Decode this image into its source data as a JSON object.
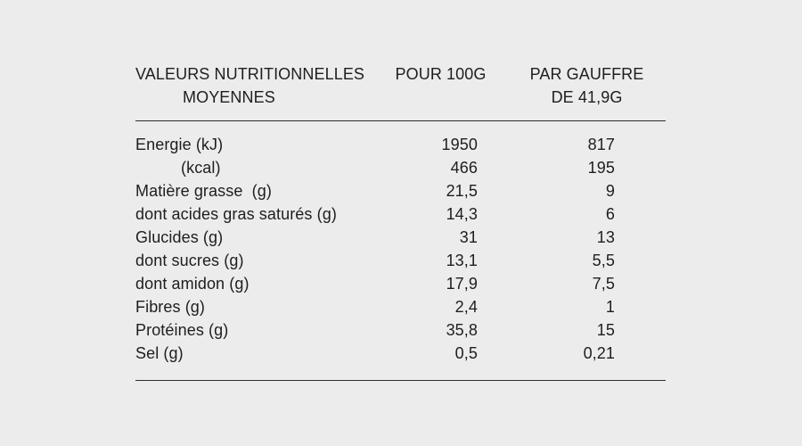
{
  "page": {
    "background_color": "#ececec",
    "text_color": "#1e1e1e",
    "rule_color": "#2e2e2e"
  },
  "chart_data": {
    "type": "table",
    "title": "VALEURS NUTRITIONNELLES MOYENNES",
    "grid": "top-and-bottom-horizontal-rules-only",
    "columns": [
      {
        "id": "label",
        "line1": "VALEURS NUTRITIONNELLES",
        "line2": "MOYENNES"
      },
      {
        "id": "pour_100g",
        "line1": "POUR 100G",
        "line2": ""
      },
      {
        "id": "par_gauffre",
        "line1": "PAR GAUFFRE",
        "line2": "DE 41,9G"
      }
    ],
    "rows": [
      {
        "label": "Energie (kJ)",
        "pour_100g": "1950",
        "par_gauffre": "817"
      },
      {
        "label": "          (kcal)",
        "pour_100g": "466",
        "par_gauffre": "195"
      },
      {
        "label": "Matière grasse  (g)",
        "pour_100g": "21,5",
        "par_gauffre": "9"
      },
      {
        "label": "dont acides gras saturés (g)",
        "pour_100g": "14,3",
        "par_gauffre": "6"
      },
      {
        "label": "Glucides (g)",
        "pour_100g": "31",
        "par_gauffre": "13"
      },
      {
        "label": "dont sucres (g)",
        "pour_100g": "13,1",
        "par_gauffre": "5,5"
      },
      {
        "label": "dont amidon (g)",
        "pour_100g": "17,9",
        "par_gauffre": "7,5"
      },
      {
        "label": "Fibres (g)",
        "pour_100g": "2,4",
        "par_gauffre": "1"
      },
      {
        "label": "Protéines (g)",
        "pour_100g": "35,8",
        "par_gauffre": "15"
      },
      {
        "label": "Sel (g)",
        "pour_100g": "0,5",
        "par_gauffre": "0,21"
      }
    ]
  }
}
